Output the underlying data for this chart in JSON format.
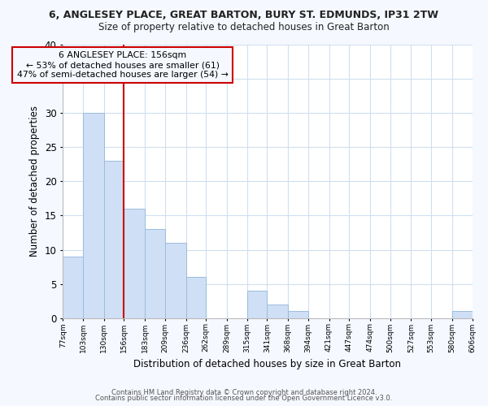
{
  "title1": "6, ANGLESEY PLACE, GREAT BARTON, BURY ST. EDMUNDS, IP31 2TW",
  "title2": "Size of property relative to detached houses in Great Barton",
  "xlabel": "Distribution of detached houses by size in Great Barton",
  "ylabel": "Number of detached properties",
  "bin_edges": [
    77,
    103,
    130,
    156,
    183,
    209,
    236,
    262,
    289,
    315,
    341,
    368,
    394,
    421,
    447,
    474,
    500,
    527,
    553,
    580,
    606
  ],
  "bar_heights": [
    9,
    30,
    23,
    16,
    13,
    11,
    6,
    0,
    0,
    4,
    2,
    1,
    0,
    0,
    0,
    0,
    0,
    0,
    0,
    1
  ],
  "bar_color": "#cfdff5",
  "bar_edge_color": "#9bbcde",
  "property_size": 156,
  "vline_color": "#cc0000",
  "annotation_line1": "6 ANGLESEY PLACE: 156sqm",
  "annotation_line2": "← 53% of detached houses are smaller (61)",
  "annotation_line3": "47% of semi-detached houses are larger (54) →",
  "annotation_box_color": "#cc0000",
  "ylim": [
    0,
    40
  ],
  "yticks": [
    0,
    5,
    10,
    15,
    20,
    25,
    30,
    35,
    40
  ],
  "plot_bg_color": "#ffffff",
  "fig_bg_color": "#f5f8ff",
  "grid_color": "#d0dff0",
  "footnote1": "Contains HM Land Registry data © Crown copyright and database right 2024.",
  "footnote2": "Contains public sector information licensed under the Open Government Licence v3.0."
}
